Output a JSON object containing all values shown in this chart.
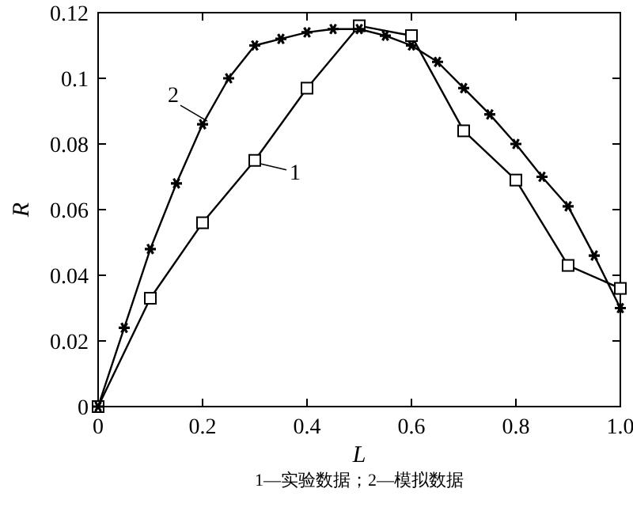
{
  "chart_data": {
    "type": "line",
    "xlabel": "L",
    "ylabel": "R",
    "xlim": [
      0,
      1
    ],
    "ylim": [
      0,
      0.12
    ],
    "xticks": [
      0,
      0.2,
      0.4,
      0.6,
      0.8,
      {
        "value": 1,
        "label": "1.0"
      }
    ],
    "yticks": [
      0,
      0.02,
      0.04,
      0.06,
      0.08,
      0.1,
      0.12
    ],
    "grid": false,
    "line_style": "solid",
    "series": [
      {
        "name": "1",
        "color": "#000000",
        "marker": "square",
        "x": [
          0,
          0.1,
          0.2,
          0.3,
          0.4,
          0.5,
          0.6,
          0.7,
          0.8,
          0.9,
          1.0
        ],
        "values": [
          0,
          0.033,
          0.056,
          0.075,
          0.097,
          0.116,
          0.113,
          0.084,
          0.069,
          0.043,
          0.036
        ]
      },
      {
        "name": "2",
        "color": "#000000",
        "marker": "cross",
        "x": [
          0,
          0.05,
          0.1,
          0.15,
          0.2,
          0.25,
          0.3,
          0.35,
          0.4,
          0.45,
          0.5,
          0.55,
          0.6,
          0.65,
          0.7,
          0.75,
          0.8,
          0.85,
          0.9,
          0.95,
          1.0
        ],
        "values": [
          0,
          0.024,
          0.048,
          0.068,
          0.086,
          0.1,
          0.11,
          0.112,
          0.114,
          0.115,
          0.115,
          0.113,
          0.11,
          0.105,
          0.097,
          0.089,
          0.08,
          0.07,
          0.061,
          0.046,
          0.03
        ]
      }
    ],
    "annotations": [
      "1—实验数据；2—模拟数据"
    ]
  }
}
